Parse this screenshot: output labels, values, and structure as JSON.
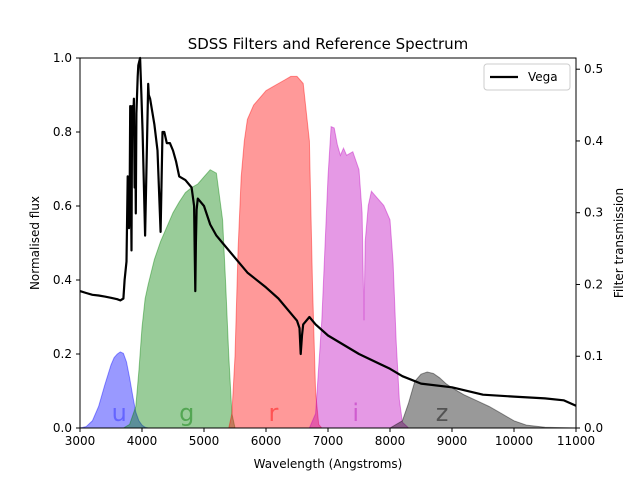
{
  "chart_data": {
    "type": "area",
    "title": "SDSS Filters and Reference Spectrum",
    "xlabel": "Wavelength (Angstroms)",
    "ylabel": "Normalised flux",
    "y2label": "Filter transmission",
    "xlim": [
      3000,
      11000
    ],
    "ylim": [
      0,
      1.0
    ],
    "y2lim": [
      0,
      0.5156
    ],
    "xticks": [
      "3000",
      "4000",
      "5000",
      "6000",
      "7000",
      "8000",
      "9000",
      "10000",
      "11000"
    ],
    "yticks": [
      "0.0",
      "0.2",
      "0.4",
      "0.6",
      "0.8",
      "1.0"
    ],
    "y2ticks": [
      "0.0",
      "0.1",
      "0.2",
      "0.3",
      "0.4",
      "0.5"
    ],
    "legend": {
      "position": "top-right",
      "entries": [
        "Vega"
      ]
    },
    "filters": [
      {
        "name": "u",
        "color": "#0000ff",
        "x": [
          3000,
          3100,
          3200,
          3300,
          3400,
          3500,
          3550,
          3600,
          3650,
          3700,
          3750,
          3800,
          3850,
          3900,
          3950,
          4000,
          4050,
          4100
        ],
        "y": [
          0.0,
          0.002,
          0.01,
          0.03,
          0.06,
          0.088,
          0.098,
          0.103,
          0.106,
          0.104,
          0.092,
          0.07,
          0.045,
          0.022,
          0.01,
          0.004,
          0.001,
          0.0
        ]
      },
      {
        "name": "g",
        "color": "#008000",
        "x": [
          3700,
          3800,
          3900,
          3950,
          4000,
          4050,
          4100,
          4200,
          4300,
          4400,
          4500,
          4600,
          4700,
          4800,
          4900,
          5000,
          5100,
          5200,
          5300,
          5350,
          5400,
          5450,
          5500
        ],
        "y": [
          0.0,
          0.005,
          0.03,
          0.08,
          0.14,
          0.18,
          0.2,
          0.235,
          0.26,
          0.28,
          0.3,
          0.315,
          0.328,
          0.335,
          0.34,
          0.35,
          0.36,
          0.355,
          0.29,
          0.2,
          0.1,
          0.02,
          0.0
        ]
      },
      {
        "name": "r",
        "color": "#ff0000",
        "x": [
          5400,
          5450,
          5500,
          5550,
          5600,
          5650,
          5700,
          5800,
          5900,
          6000,
          6100,
          6200,
          6300,
          6400,
          6500,
          6600,
          6700,
          6750,
          6800,
          6850,
          6900
        ],
        "y": [
          0.0,
          0.02,
          0.1,
          0.25,
          0.35,
          0.4,
          0.43,
          0.45,
          0.46,
          0.47,
          0.475,
          0.48,
          0.485,
          0.49,
          0.49,
          0.48,
          0.4,
          0.2,
          0.05,
          0.005,
          0.0
        ]
      },
      {
        "name": "i",
        "color": "#bf00bf",
        "x": [
          6700,
          6800,
          6900,
          7000,
          7050,
          7100,
          7150,
          7200,
          7250,
          7300,
          7400,
          7500,
          7550,
          7580,
          7600,
          7650,
          7700,
          7800,
          7900,
          8000,
          8050,
          8100,
          8150,
          8200,
          8300
        ],
        "y": [
          0.0,
          0.02,
          0.15,
          0.35,
          0.42,
          0.418,
          0.395,
          0.38,
          0.39,
          0.38,
          0.385,
          0.36,
          0.3,
          0.15,
          0.26,
          0.31,
          0.33,
          0.32,
          0.31,
          0.29,
          0.23,
          0.12,
          0.04,
          0.008,
          0.0
        ]
      },
      {
        "name": "z",
        "color": "#000000",
        "x": [
          8000,
          8200,
          8300,
          8400,
          8500,
          8600,
          8700,
          8800,
          8900,
          9000,
          9200,
          9400,
          9600,
          9800,
          10000,
          10200,
          10500,
          11000
        ],
        "y": [
          0.0,
          0.01,
          0.035,
          0.065,
          0.075,
          0.078,
          0.076,
          0.07,
          0.062,
          0.056,
          0.046,
          0.038,
          0.03,
          0.02,
          0.01,
          0.004,
          0.001,
          0.0
        ]
      }
    ],
    "spectrum": {
      "name": "Vega",
      "x": [
        3000,
        3100,
        3200,
        3300,
        3400,
        3500,
        3600,
        3650,
        3700,
        3720,
        3750,
        3770,
        3790,
        3800,
        3810,
        3830,
        3840,
        3860,
        3870,
        3880,
        3890,
        3900,
        3910,
        3930,
        3940,
        3970,
        3990,
        4010,
        4050,
        4100,
        4110,
        4130,
        4200,
        4250,
        4300,
        4330,
        4340,
        4360,
        4400,
        4450,
        4500,
        4550,
        4600,
        4700,
        4800,
        4840,
        4850,
        4860,
        4870,
        4880,
        4900,
        5000,
        5100,
        5200,
        5300,
        5500,
        5700,
        6000,
        6200,
        6400,
        6500,
        6540,
        6560,
        6580,
        6600,
        6700,
        6800,
        7000,
        7500,
        8000,
        8200,
        8500,
        9000,
        9500,
        10000,
        10500,
        10800,
        11000
      ],
      "y": [
        0.37,
        0.365,
        0.36,
        0.358,
        0.355,
        0.352,
        0.348,
        0.345,
        0.35,
        0.4,
        0.45,
        0.68,
        0.54,
        0.6,
        0.87,
        0.48,
        0.87,
        0.84,
        0.89,
        0.65,
        0.8,
        0.58,
        0.85,
        0.95,
        0.98,
        1.0,
        0.9,
        0.8,
        0.52,
        0.93,
        0.9,
        0.89,
        0.82,
        0.75,
        0.53,
        0.8,
        0.8,
        0.8,
        0.77,
        0.77,
        0.75,
        0.72,
        0.68,
        0.67,
        0.65,
        0.6,
        0.48,
        0.37,
        0.5,
        0.59,
        0.62,
        0.6,
        0.55,
        0.52,
        0.5,
        0.46,
        0.42,
        0.38,
        0.35,
        0.31,
        0.29,
        0.27,
        0.2,
        0.25,
        0.28,
        0.3,
        0.28,
        0.25,
        0.2,
        0.16,
        0.14,
        0.12,
        0.11,
        0.09,
        0.085,
        0.08,
        0.075,
        0.06
      ]
    }
  },
  "colors": {
    "u": "#6464ff",
    "g": "#53a653",
    "r": "#ff5353",
    "i": "#cf5bcf",
    "z": "#535353",
    "spectrum": "#000000"
  }
}
